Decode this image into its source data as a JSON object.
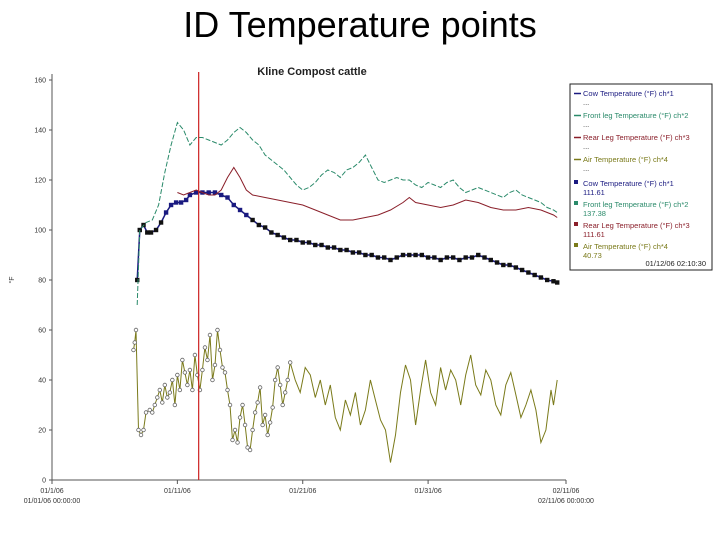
{
  "slide": {
    "title": "ID Temperature points"
  },
  "chart_data": {
    "type": "line",
    "title": "Kline Compost cattle",
    "ylabel": "°F",
    "xlabel": "",
    "ylim": [
      0,
      160
    ],
    "y_ticks": [
      "0",
      "20",
      "40",
      "60",
      "80",
      "100",
      "120",
      "140",
      "160"
    ],
    "x_range_days": [
      0,
      41
    ],
    "x_ticks": [
      {
        "day": 0,
        "label": "01/1/06",
        "sub": "01/01/06 00:00:00"
      },
      {
        "day": 10,
        "label": "01/11/06",
        "sub": ""
      },
      {
        "day": 20,
        "label": "01/21/06",
        "sub": ""
      },
      {
        "day": 30,
        "label": "01/31/06",
        "sub": ""
      },
      {
        "day": 41,
        "label": "02/11/06",
        "sub": "02/11/06 00:00:00"
      }
    ],
    "cursor": {
      "day": 11.7,
      "label": "01/12/06 02:10:30"
    },
    "series": [
      {
        "name": "Cow Temperature (°F) ch*1",
        "readout": "111.61",
        "color": "#1a1a80",
        "style": "square-markers",
        "points": [
          [
            6.8,
            80
          ],
          [
            7.0,
            100
          ],
          [
            7.3,
            102
          ],
          [
            7.6,
            99
          ],
          [
            7.9,
            99
          ],
          [
            8.3,
            100
          ],
          [
            8.7,
            103
          ],
          [
            9.1,
            107
          ],
          [
            9.5,
            110
          ],
          [
            9.9,
            111
          ],
          [
            10.3,
            111
          ],
          [
            10.7,
            112
          ],
          [
            11.0,
            114
          ],
          [
            11.5,
            115
          ],
          [
            12.0,
            115
          ],
          [
            12.5,
            115
          ],
          [
            13.0,
            115
          ],
          [
            13.5,
            114
          ],
          [
            14.0,
            113
          ],
          [
            14.5,
            110
          ],
          [
            15.0,
            108
          ],
          [
            15.5,
            106
          ],
          [
            16.0,
            104
          ],
          [
            16.5,
            102
          ],
          [
            17.0,
            101
          ],
          [
            17.5,
            99
          ],
          [
            18.0,
            98
          ],
          [
            18.5,
            97
          ],
          [
            19.0,
            96
          ],
          [
            19.5,
            96
          ],
          [
            20.0,
            95
          ],
          [
            20.5,
            95
          ],
          [
            21.0,
            94
          ],
          [
            21.5,
            94
          ],
          [
            22.0,
            93
          ],
          [
            22.5,
            93
          ],
          [
            23.0,
            92
          ],
          [
            23.5,
            92
          ],
          [
            24.0,
            91
          ],
          [
            24.5,
            91
          ],
          [
            25.0,
            90
          ],
          [
            25.5,
            90
          ],
          [
            26.0,
            89
          ],
          [
            26.5,
            89
          ],
          [
            27.0,
            88
          ],
          [
            27.5,
            89
          ],
          [
            28.0,
            90
          ],
          [
            28.5,
            90
          ],
          [
            29.0,
            90
          ],
          [
            29.5,
            90
          ],
          [
            30.0,
            89
          ],
          [
            30.5,
            89
          ],
          [
            31.0,
            88
          ],
          [
            31.5,
            89
          ],
          [
            32.0,
            89
          ],
          [
            32.5,
            88
          ],
          [
            33.0,
            89
          ],
          [
            33.5,
            89
          ],
          [
            34.0,
            90
          ],
          [
            34.5,
            89
          ],
          [
            35.0,
            88
          ],
          [
            35.5,
            87
          ],
          [
            36.0,
            86
          ],
          [
            36.5,
            86
          ],
          [
            37.0,
            85
          ],
          [
            37.5,
            84
          ],
          [
            38.0,
            83
          ],
          [
            38.5,
            82
          ],
          [
            39.0,
            81
          ],
          [
            39.5,
            80
          ],
          [
            40.0,
            79.5
          ],
          [
            40.3,
            79
          ]
        ]
      },
      {
        "name": "Front leg Temperature (°F) ch*2",
        "readout": "137.38",
        "color": "#2a8a6a",
        "style": "dashed",
        "points": [
          [
            6.8,
            70
          ],
          [
            7.0,
            100
          ],
          [
            7.5,
            103
          ],
          [
            8.0,
            104
          ],
          [
            8.5,
            110
          ],
          [
            9.0,
            123
          ],
          [
            9.5,
            134
          ],
          [
            10.0,
            143
          ],
          [
            10.5,
            140
          ],
          [
            11.0,
            134
          ],
          [
            11.5,
            137
          ],
          [
            12.0,
            137
          ],
          [
            12.5,
            136
          ],
          [
            13.0,
            135
          ],
          [
            13.5,
            134
          ],
          [
            14.0,
            136
          ],
          [
            14.5,
            139
          ],
          [
            15.0,
            141
          ],
          [
            15.5,
            139
          ],
          [
            16.0,
            136
          ],
          [
            16.5,
            134
          ],
          [
            17.0,
            130
          ],
          [
            17.5,
            128
          ],
          [
            18.0,
            126
          ],
          [
            18.5,
            124
          ],
          [
            19.0,
            121
          ],
          [
            19.5,
            118
          ],
          [
            20.0,
            116
          ],
          [
            20.5,
            117
          ],
          [
            21.0,
            119
          ],
          [
            21.5,
            122
          ],
          [
            22.0,
            124
          ],
          [
            22.5,
            123
          ],
          [
            23.0,
            121
          ],
          [
            23.5,
            124
          ],
          [
            24.0,
            125
          ],
          [
            24.5,
            127
          ],
          [
            25.0,
            130
          ],
          [
            25.5,
            125
          ],
          [
            26.0,
            120
          ],
          [
            26.5,
            119
          ],
          [
            27.0,
            120
          ],
          [
            27.5,
            121
          ],
          [
            28.0,
            120
          ],
          [
            28.5,
            120
          ],
          [
            29.0,
            118
          ],
          [
            29.5,
            117
          ],
          [
            30.0,
            119
          ],
          [
            30.5,
            118
          ],
          [
            31.0,
            117
          ],
          [
            31.5,
            119
          ],
          [
            32.0,
            120
          ],
          [
            32.5,
            117
          ],
          [
            33.0,
            115
          ],
          [
            33.5,
            116
          ],
          [
            34.0,
            117
          ],
          [
            34.5,
            116
          ],
          [
            35.0,
            115
          ],
          [
            35.5,
            114
          ],
          [
            36.0,
            113
          ],
          [
            36.5,
            115
          ],
          [
            37.0,
            116
          ],
          [
            37.5,
            114
          ],
          [
            38.0,
            113
          ],
          [
            38.5,
            112
          ],
          [
            39.0,
            111
          ],
          [
            39.5,
            109
          ],
          [
            40.0,
            108
          ],
          [
            40.3,
            107
          ]
        ]
      },
      {
        "name": "Rear Leg Temperature (°F) ch*3",
        "readout": "111.61",
        "color": "#8a1f2a",
        "style": "line",
        "points": [
          [
            10.0,
            115
          ],
          [
            10.5,
            114
          ],
          [
            11.0,
            115
          ],
          [
            11.5,
            116
          ],
          [
            12.0,
            115
          ],
          [
            12.5,
            114
          ],
          [
            13.0,
            114
          ],
          [
            13.5,
            116
          ],
          [
            14.0,
            121
          ],
          [
            14.5,
            125
          ],
          [
            15.0,
            121
          ],
          [
            15.5,
            116
          ],
          [
            16.0,
            114
          ],
          [
            17.0,
            113
          ],
          [
            18.0,
            112
          ],
          [
            19.0,
            111
          ],
          [
            20.0,
            110
          ],
          [
            21.0,
            108
          ],
          [
            22.0,
            106
          ],
          [
            23.0,
            104
          ],
          [
            24.0,
            104
          ],
          [
            25.0,
            105
          ],
          [
            26.0,
            106
          ],
          [
            27.0,
            108
          ],
          [
            28.0,
            111
          ],
          [
            28.5,
            113
          ],
          [
            29.0,
            111
          ],
          [
            30.0,
            110
          ],
          [
            31.0,
            109
          ],
          [
            32.0,
            110
          ],
          [
            33.0,
            112
          ],
          [
            34.0,
            111
          ],
          [
            35.0,
            109
          ],
          [
            36.0,
            108
          ],
          [
            37.0,
            108
          ],
          [
            38.0,
            109
          ],
          [
            39.0,
            108
          ],
          [
            40.0,
            106
          ],
          [
            40.3,
            105
          ]
        ]
      },
      {
        "name": "Air Temperature (°F) ch*4",
        "readout": "40.73",
        "color": "#7a7a1a",
        "style": "line",
        "points_hollow_until_day": 19.0,
        "points": [
          [
            6.5,
            52
          ],
          [
            6.6,
            55
          ],
          [
            6.7,
            60
          ],
          [
            6.9,
            20
          ],
          [
            7.1,
            18
          ],
          [
            7.3,
            20
          ],
          [
            7.5,
            27
          ],
          [
            7.8,
            28
          ],
          [
            8.0,
            27
          ],
          [
            8.2,
            30
          ],
          [
            8.4,
            33
          ],
          [
            8.6,
            36
          ],
          [
            8.8,
            31
          ],
          [
            9.0,
            38
          ],
          [
            9.2,
            33
          ],
          [
            9.4,
            35
          ],
          [
            9.6,
            40
          ],
          [
            9.8,
            30
          ],
          [
            10.0,
            42
          ],
          [
            10.2,
            36
          ],
          [
            10.4,
            48
          ],
          [
            10.6,
            43
          ],
          [
            10.8,
            38
          ],
          [
            11.0,
            44
          ],
          [
            11.2,
            36
          ],
          [
            11.4,
            50
          ],
          [
            11.6,
            42
          ],
          [
            11.8,
            36
          ],
          [
            12.0,
            44
          ],
          [
            12.2,
            53
          ],
          [
            12.4,
            48
          ],
          [
            12.6,
            58
          ],
          [
            12.8,
            40
          ],
          [
            13.0,
            46
          ],
          [
            13.2,
            60
          ],
          [
            13.4,
            52
          ],
          [
            13.6,
            45
          ],
          [
            13.8,
            43
          ],
          [
            14.0,
            36
          ],
          [
            14.2,
            30
          ],
          [
            14.4,
            16
          ],
          [
            14.6,
            20
          ],
          [
            14.8,
            15
          ],
          [
            15.0,
            25
          ],
          [
            15.2,
            30
          ],
          [
            15.4,
            22
          ],
          [
            15.6,
            13
          ],
          [
            15.8,
            12
          ],
          [
            16.0,
            20
          ],
          [
            16.2,
            27
          ],
          [
            16.4,
            31
          ],
          [
            16.6,
            37
          ],
          [
            16.8,
            22
          ],
          [
            17.0,
            26
          ],
          [
            17.2,
            18
          ],
          [
            17.4,
            23
          ],
          [
            17.6,
            29
          ],
          [
            17.8,
            40
          ],
          [
            18.0,
            45
          ],
          [
            18.2,
            38
          ],
          [
            18.4,
            30
          ],
          [
            18.6,
            35
          ],
          [
            18.8,
            40
          ],
          [
            19.0,
            47
          ],
          [
            19.4,
            40
          ],
          [
            19.8,
            35
          ],
          [
            20.2,
            45
          ],
          [
            20.6,
            42
          ],
          [
            21.0,
            33
          ],
          [
            21.4,
            40
          ],
          [
            21.8,
            30
          ],
          [
            22.2,
            38
          ],
          [
            22.6,
            25
          ],
          [
            23.0,
            20
          ],
          [
            23.4,
            32
          ],
          [
            23.8,
            26
          ],
          [
            24.2,
            35
          ],
          [
            24.6,
            22
          ],
          [
            25.0,
            28
          ],
          [
            25.4,
            40
          ],
          [
            25.8,
            32
          ],
          [
            26.2,
            24
          ],
          [
            26.6,
            20
          ],
          [
            27.0,
            7
          ],
          [
            27.4,
            18
          ],
          [
            27.8,
            35
          ],
          [
            28.2,
            46
          ],
          [
            28.6,
            40
          ],
          [
            29.0,
            22
          ],
          [
            29.4,
            36
          ],
          [
            29.8,
            48
          ],
          [
            30.2,
            35
          ],
          [
            30.6,
            30
          ],
          [
            31.0,
            45
          ],
          [
            31.4,
            36
          ],
          [
            31.8,
            44
          ],
          [
            32.2,
            40
          ],
          [
            32.6,
            30
          ],
          [
            33.0,
            42
          ],
          [
            33.4,
            50
          ],
          [
            33.8,
            38
          ],
          [
            34.2,
            34
          ],
          [
            34.6,
            44
          ],
          [
            35.0,
            40
          ],
          [
            35.4,
            30
          ],
          [
            35.8,
            26
          ],
          [
            36.2,
            38
          ],
          [
            36.6,
            43
          ],
          [
            37.0,
            34
          ],
          [
            37.4,
            25
          ],
          [
            37.8,
            30
          ],
          [
            38.2,
            36
          ],
          [
            38.6,
            28
          ],
          [
            39.0,
            15
          ],
          [
            39.4,
            20
          ],
          [
            39.8,
            36
          ],
          [
            40.0,
            30
          ],
          [
            40.3,
            40
          ]
        ]
      }
    ],
    "grid": false,
    "legend_placement": "top-right"
  }
}
